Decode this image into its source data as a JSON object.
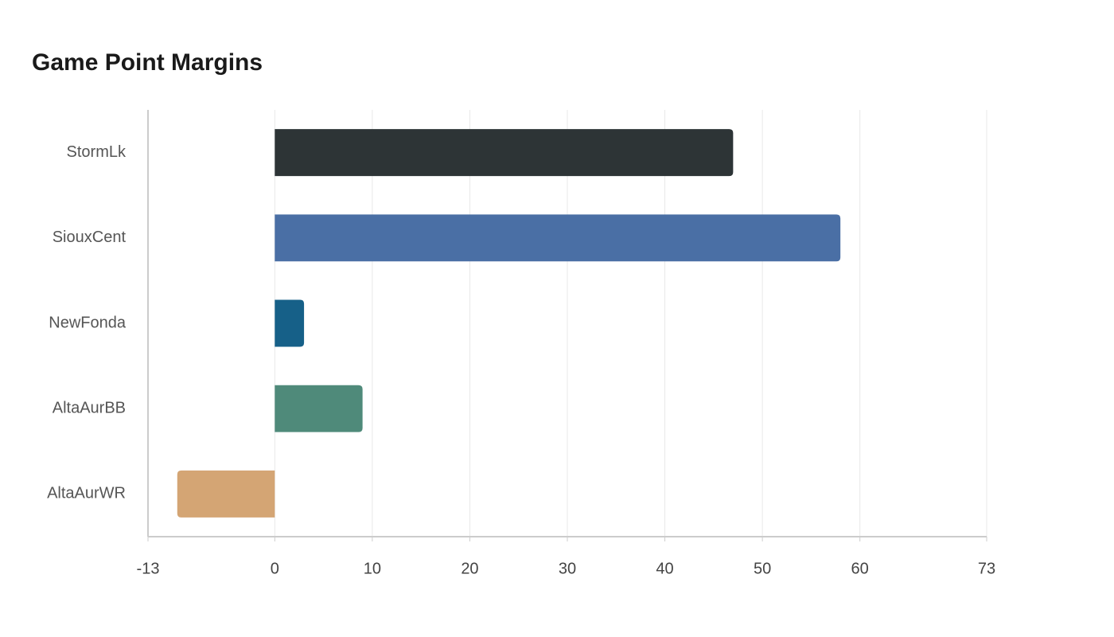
{
  "chart_data": {
    "type": "bar",
    "orientation": "horizontal",
    "title": "Game Point Margins",
    "categories": [
      "StormLk",
      "SiouxCent",
      "NewFonda",
      "AltaAurBB",
      "AltaAurWR"
    ],
    "values": [
      47,
      58,
      3,
      9,
      -10
    ],
    "colors": [
      "#2d3436",
      "#4a6fa5",
      "#166088",
      "#4f8a7a",
      "#d4a574"
    ],
    "xlim": [
      -13,
      73
    ],
    "xticks": [
      -13,
      0,
      10,
      20,
      30,
      40,
      50,
      60,
      73
    ],
    "grid": true
  }
}
